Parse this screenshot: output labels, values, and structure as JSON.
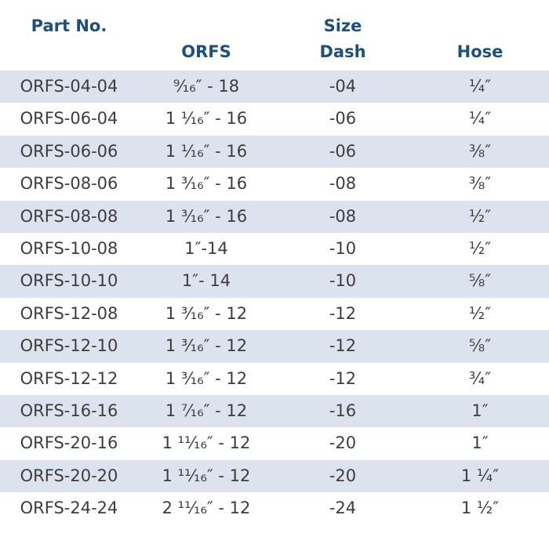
{
  "headers": {
    "part_no": "Part No.",
    "orfs": "ORFS",
    "size": "Size",
    "dash": "Dash",
    "hose": "Hose"
  },
  "rows": [
    {
      "part": "ORFS-04-04",
      "orfs": "⁹⁄₁₆″ - 18",
      "dash": "-04",
      "hose": "¼″"
    },
    {
      "part": "ORFS-06-04",
      "orfs": "1 ¹⁄₁₆″ - 16",
      "dash": "-06",
      "hose": "¼″"
    },
    {
      "part": "ORFS-06-06",
      "orfs": "1 ¹⁄₁₆″ - 16",
      "dash": "-06",
      "hose": "⅜″"
    },
    {
      "part": "ORFS-08-06",
      "orfs": "1 ³⁄₁₆″ - 16",
      "dash": "-08",
      "hose": "⅜″"
    },
    {
      "part": "ORFS-08-08",
      "orfs": "1 ³⁄₁₆″ - 16",
      "dash": "-08",
      "hose": "½″"
    },
    {
      "part": "ORFS-10-08",
      "orfs": "1″-14",
      "dash": "-10",
      "hose": "½″"
    },
    {
      "part": "ORFS-10-10",
      "orfs": "1″- 14",
      "dash": "-10",
      "hose": "⅝″"
    },
    {
      "part": "ORFS-12-08",
      "orfs": "1 ³⁄₁₆″ - 12",
      "dash": "-12",
      "hose": "½″"
    },
    {
      "part": "ORFS-12-10",
      "orfs": "1 ³⁄₁₆″ - 12",
      "dash": "-12",
      "hose": "⅝″"
    },
    {
      "part": "ORFS-12-12",
      "orfs": "1 ³⁄₁₆″ - 12",
      "dash": "-12",
      "hose": "¾″"
    },
    {
      "part": "ORFS-16-16",
      "orfs": "1 ⁷⁄₁₆″ - 12",
      "dash": "-16",
      "hose": "1″"
    },
    {
      "part": "ORFS-20-16",
      "orfs": "1 ¹¹⁄₁₆″ - 12",
      "dash": "-20",
      "hose": "1″"
    },
    {
      "part": "ORFS-20-20",
      "orfs": "1 ¹¹⁄₁₆″ - 12",
      "dash": "-20",
      "hose": "1 ¼″"
    },
    {
      "part": "ORFS-24-24",
      "orfs": "2 ¹¹⁄₁₆″ - 12",
      "dash": "-24",
      "hose": "1 ½″"
    }
  ]
}
